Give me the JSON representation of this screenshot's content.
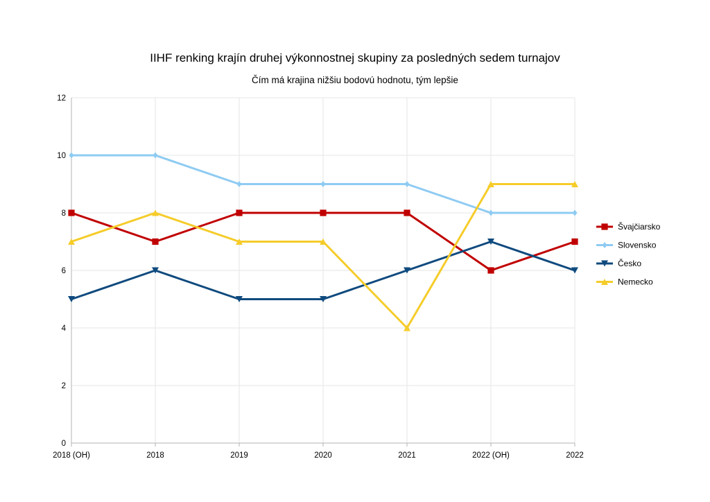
{
  "chart_data": {
    "type": "line",
    "title": "IIHF renking krajín druhej výkonnostnej skupiny za posledných sedem turnajov",
    "subtitle": "Čím má krajina nižšiu bodovú hodnotu, tým lepšie",
    "categories": [
      "2018 (OH)",
      "2018",
      "2019",
      "2020",
      "2021",
      "2022 (OH)",
      "2022"
    ],
    "ylim": [
      0,
      12
    ],
    "yticks": [
      0,
      2,
      4,
      6,
      8,
      10,
      12
    ],
    "grid": true,
    "legend_position": "right",
    "series": [
      {
        "name": "Švajčiarsko",
        "color": "#c00000",
        "marker": "square",
        "values": [
          8,
          7,
          8,
          8,
          8,
          6,
          7
        ]
      },
      {
        "name": "Slovensko",
        "color": "#8ecbf2",
        "marker": "diamond",
        "values": [
          10,
          10,
          9,
          9,
          9,
          8,
          8
        ]
      },
      {
        "name": "Česko",
        "color": "#0f4a7e",
        "marker": "triangle-down",
        "values": [
          5,
          6,
          5,
          5,
          6,
          7,
          6
        ]
      },
      {
        "name": "Nemecko",
        "color": "#f5cc2a",
        "marker": "triangle-up",
        "values": [
          7,
          8,
          7,
          7,
          4,
          9,
          9
        ]
      }
    ]
  }
}
